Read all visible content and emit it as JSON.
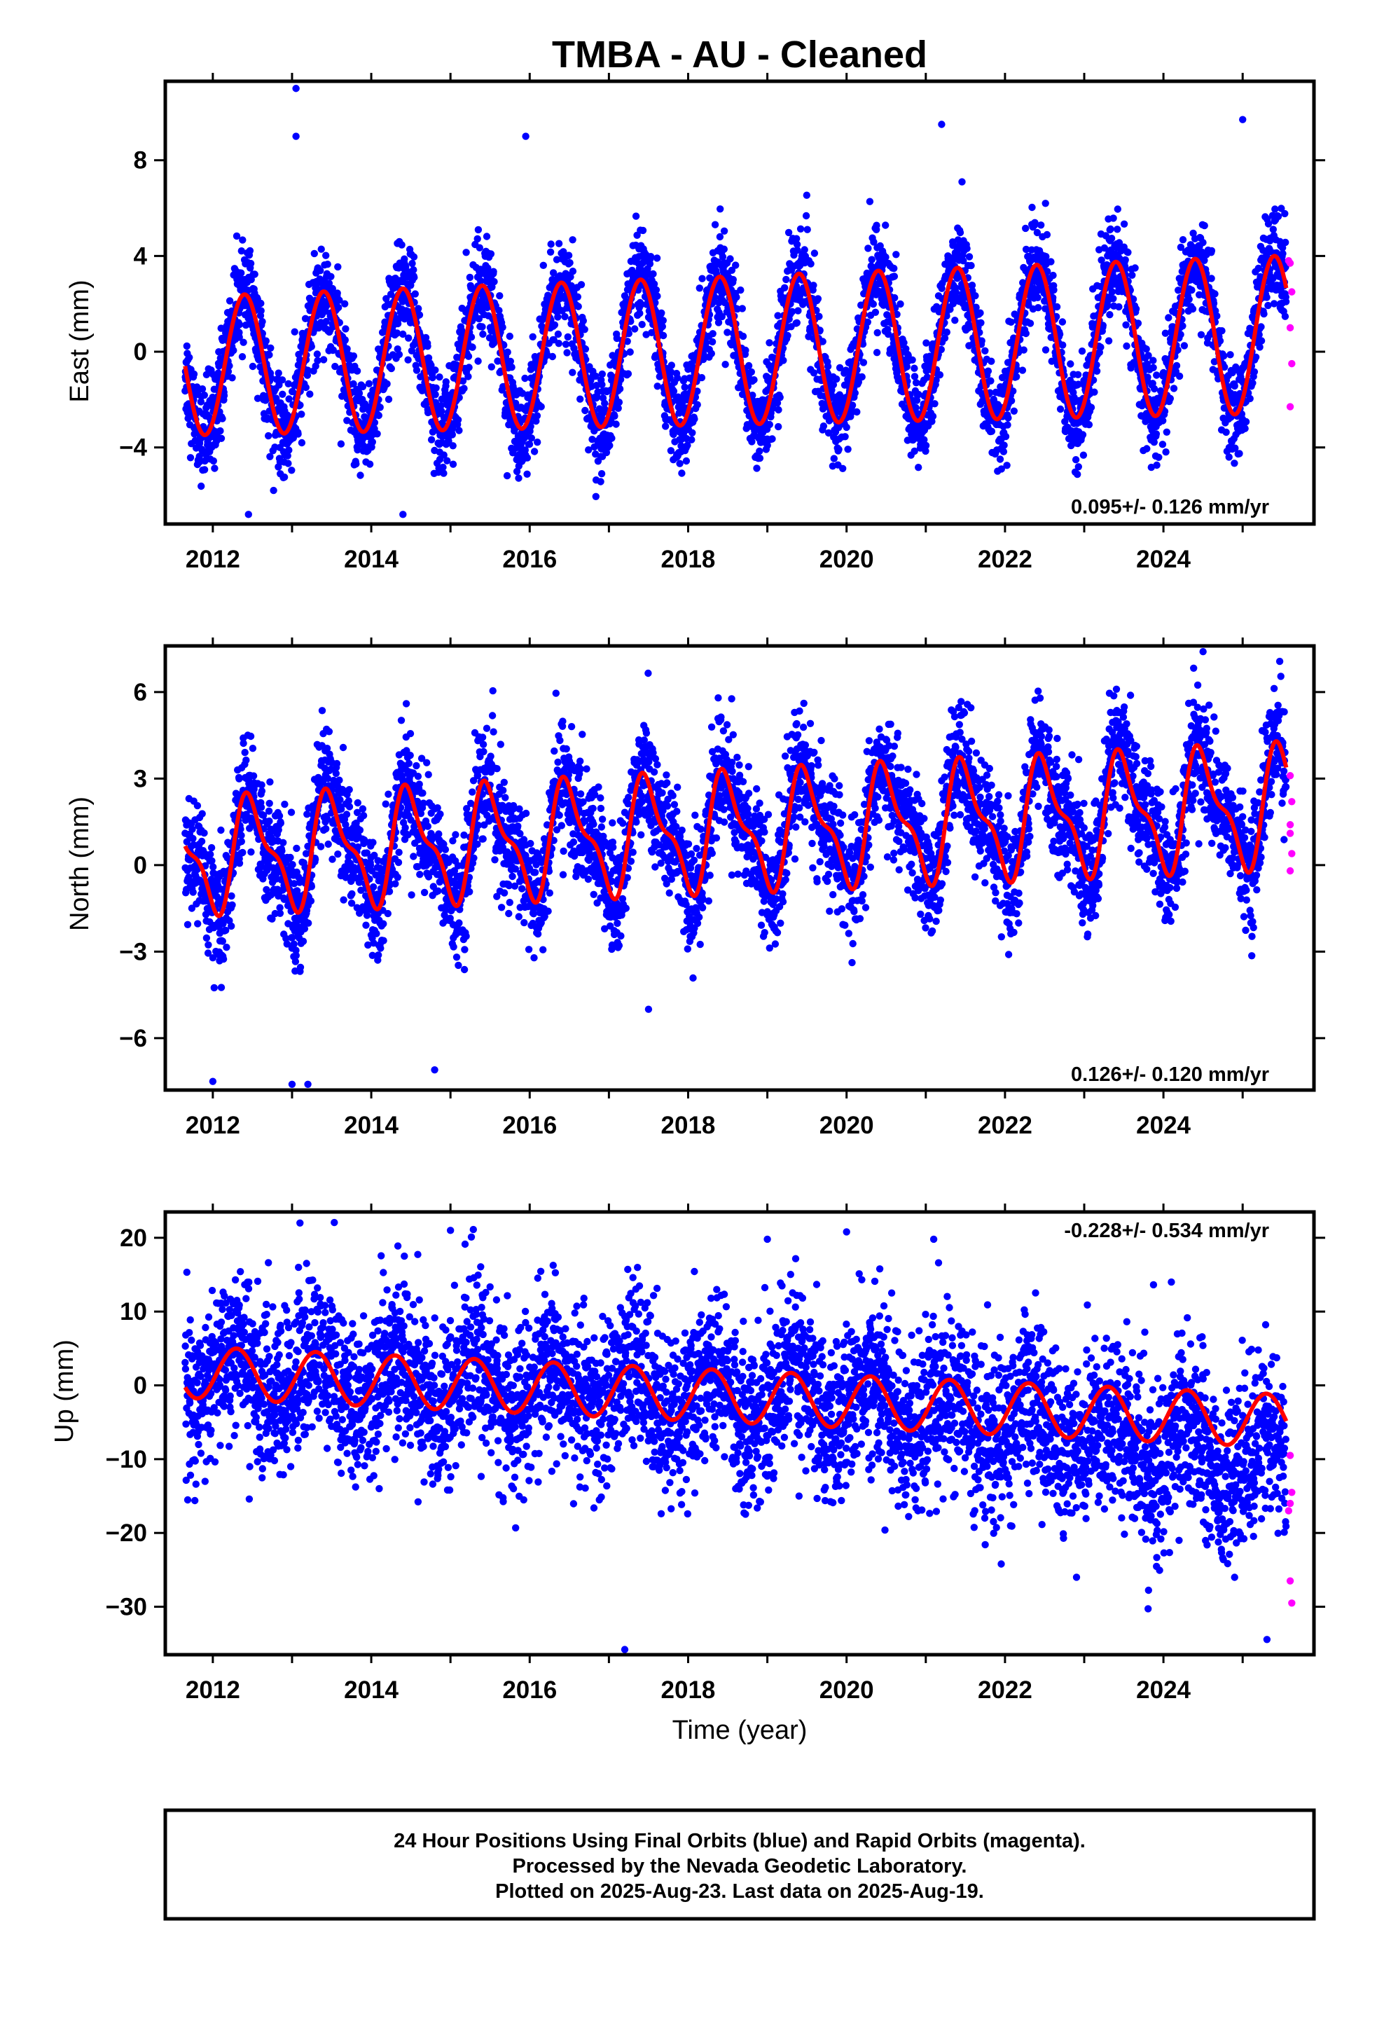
{
  "title": "TMBA  - AU - Cleaned",
  "xlabel": "Time (year)",
  "footer": {
    "line1": "24 Hour Positions Using Final Orbits (blue) and Rapid Orbits (magenta).",
    "line2": "Processed by the Nevada Geodetic Laboratory.",
    "line3": "Plotted on 2025-Aug-23. Last data on 2025-Aug-19."
  },
  "colors": {
    "final": "#0000ff",
    "rapid": "#ff00ff",
    "model": "#ff0000",
    "frame": "#000000"
  },
  "chart_data": [
    {
      "type": "scatter",
      "name": "east",
      "ylabel": "East (mm)",
      "rate_text": "0.095+/- 0.126 mm/yr",
      "xlim": [
        2011.4,
        2025.9
      ],
      "ylim": [
        -7.2,
        11.3
      ],
      "xticks": [
        "2012",
        "2014",
        "2016",
        "2018",
        "2020",
        "2022",
        "2024"
      ],
      "yticks": [
        "8",
        "4",
        "0",
        "-4"
      ],
      "seasonal_model": {
        "amplitude_start": 2.9,
        "amplitude_end": 3.3,
        "offset": -0.6,
        "rate_mm_per_yr": 0.095,
        "phase_year": 0.15
      },
      "outliers": [
        [
          2013.05,
          11.0
        ],
        [
          2013.05,
          9.0
        ],
        [
          2015.95,
          9.0
        ],
        [
          2021.2,
          9.5
        ],
        [
          2025.0,
          9.7
        ],
        [
          2012.45,
          -6.8
        ],
        [
          2014.4,
          -6.8
        ]
      ],
      "rapid_points": [
        [
          2025.58,
          3.8
        ],
        [
          2025.6,
          3.7
        ],
        [
          2025.6,
          1.0
        ],
        [
          2025.62,
          -0.5
        ],
        [
          2025.6,
          -2.3
        ],
        [
          2025.62,
          2.5
        ]
      ]
    },
    {
      "type": "scatter",
      "name": "north",
      "ylabel": "North (mm)",
      "rate_text": "0.126+/- 0.120 mm/yr",
      "xlim": [
        2011.4,
        2025.9
      ],
      "ylim": [
        -7.8,
        7.6
      ],
      "xticks": [
        "2012",
        "2014",
        "2016",
        "2018",
        "2020",
        "2022",
        "2024"
      ],
      "yticks": [
        "6",
        "3",
        "0",
        "-3",
        "-6"
      ],
      "seasonal_model": {
        "amplitude_start": 2.9,
        "amplitude_end": 3.1,
        "offset": 0.0,
        "rate_mm_per_yr": 0.126,
        "phase_year": 0.5
      },
      "outliers": [
        [
          2012.0,
          -7.5
        ],
        [
          2013.0,
          -7.6
        ],
        [
          2013.2,
          -7.6
        ],
        [
          2014.8,
          -7.1
        ],
        [
          2024.5,
          7.4
        ],
        [
          2017.5,
          -5.0
        ]
      ],
      "rapid_points": [
        [
          2025.6,
          3.1
        ],
        [
          2025.62,
          2.2
        ],
        [
          2025.6,
          1.4
        ],
        [
          2025.6,
          1.1
        ],
        [
          2025.62,
          0.4
        ],
        [
          2025.6,
          -0.2
        ]
      ]
    },
    {
      "type": "scatter",
      "name": "up",
      "ylabel": "Up (mm)",
      "rate_text": "-0.228+/- 0.534 mm/yr",
      "xlim": [
        2011.4,
        2025.9
      ],
      "ylim": [
        -36.5,
        23.5
      ],
      "xticks": [
        "2012",
        "2014",
        "2016",
        "2018",
        "2020",
        "2022",
        "2024"
      ],
      "yticks": [
        "20",
        "10",
        "0",
        "-10",
        "-20",
        "-30"
      ],
      "seasonal_model": {
        "amplitude_start": 3.5,
        "amplitude_end": 3.6,
        "offset": 1.8,
        "rate_mm_per_yr": -0.228,
        "phase_year": 0.05
      },
      "outliers": [
        [
          2017.2,
          -35.8
        ],
        [
          2013.1,
          22.0
        ],
        [
          2015.0,
          21.0
        ],
        [
          2019.0,
          19.8
        ],
        [
          2020.0,
          20.8
        ],
        [
          2021.1,
          19.8
        ],
        [
          2024.1,
          14.0
        ],
        [
          2018.6,
          -14.0
        ],
        [
          2019.4,
          -15.0
        ],
        [
          2018.7,
          -16.2
        ]
      ],
      "rapid_points": [
        [
          2025.6,
          -9.5
        ],
        [
          2025.62,
          -14.5
        ],
        [
          2025.6,
          -16.0
        ],
        [
          2025.58,
          -17.0
        ],
        [
          2025.6,
          -26.5
        ],
        [
          2025.62,
          -29.5
        ]
      ]
    }
  ]
}
